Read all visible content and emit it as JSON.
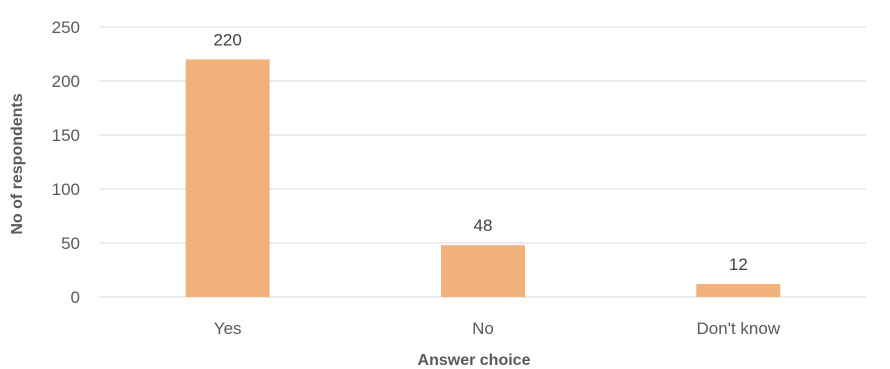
{
  "chart_data": {
    "type": "bar",
    "categories": [
      "Yes",
      "No",
      "Don't know"
    ],
    "values": [
      220,
      48,
      12
    ],
    "data_labels": [
      "220",
      "48",
      "12"
    ],
    "title": "",
    "xlabel": "Answer choice",
    "ylabel": "No of respondents",
    "ylim": [
      0,
      250
    ],
    "yticks": [
      0,
      50,
      100,
      150,
      200,
      250
    ],
    "ytick_labels": [
      "0",
      "50",
      "100",
      "150",
      "200",
      "250"
    ],
    "grid": true,
    "legend": "none",
    "bar_color": "#f0b27a",
    "gridline_color": "#d9d9d9",
    "text_color": "#595959"
  }
}
